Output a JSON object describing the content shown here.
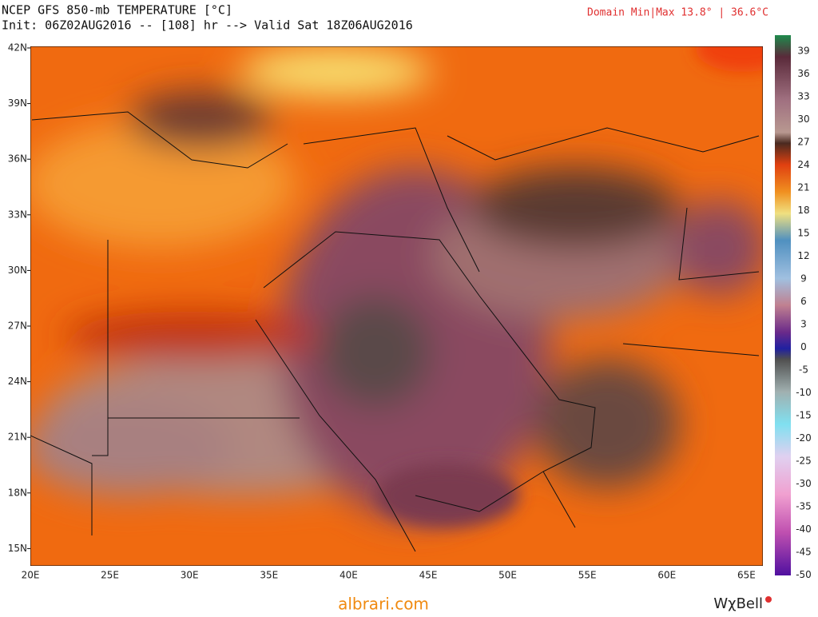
{
  "header": {
    "title": "NCEP GFS 850-mb TEMPERATURE [°C]",
    "subtitle": "Init: 06Z02AUG2016 -- [108] hr --> Valid Sat 18Z06AUG2016",
    "domain": "Domain Min|Max 13.8° | 36.6°C"
  },
  "map": {
    "lat_labels": [
      "42N",
      "39N",
      "36N",
      "33N",
      "30N",
      "27N",
      "24N",
      "21N",
      "18N",
      "15N"
    ],
    "lon_labels": [
      "20E",
      "25E",
      "30E",
      "35E",
      "40E",
      "45E",
      "50E",
      "55E",
      "60E",
      "65E"
    ]
  },
  "colorbar": {
    "labels": [
      "39",
      "36",
      "33",
      "30",
      "27",
      "24",
      "21",
      "18",
      "15",
      "12",
      "9",
      "6",
      "3",
      "0",
      "-5",
      "-10",
      "-15",
      "-20",
      "-25",
      "-30",
      "-35",
      "-40",
      "-45",
      "-50"
    ]
  },
  "footer": {
    "site": "albrari.com",
    "brand": "WχBell"
  }
}
